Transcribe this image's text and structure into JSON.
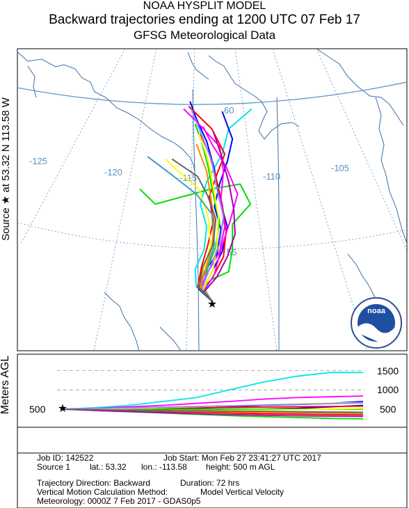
{
  "header": {
    "line1": "NOAA HYSPLIT MODEL",
    "line2": "Backward trajectories ending at 1200 UTC 07 Feb 17",
    "line3": "GFSG Meteorological Data"
  },
  "side_label": "Source ★ at  53.32 N  113.58 W",
  "vertical_axis_label": "Meters AGL",
  "logo": {
    "text": "noaa"
  },
  "info": {
    "job_id": "Job ID: 142522",
    "job_start": "Job Start: Mon Feb 27 23:41:27 UTC 2017",
    "source": "Source 1",
    "lat": "lat.: 53.32",
    "lon": "lon.: -113.58",
    "height": "height: 500 m AGL",
    "direction": "Trajectory Direction: Backward",
    "duration": "Duration: 72 hrs",
    "vmotion": "Vertical Motion Calculation Method:",
    "vmotion_value": "Model Vertical Velocity",
    "meteorology": "Meteorology: 0000Z  7 Feb 2017 - GDAS0p5"
  },
  "colors": {
    "graticule": "#5b8fc2",
    "boundary": "#3a6fa8",
    "ensemble": [
      "#ff0000",
      "#0000ff",
      "#00dd00",
      "#00e5e5",
      "#ff00ff",
      "#ffff00",
      "#7a7aff",
      "#ff8800",
      "#8888ff",
      "#ff44aa",
      "#00aa00",
      "#4499cc",
      "#aa00aa",
      "#666666"
    ]
  },
  "chart_data": {
    "type": "line",
    "title": "Backward trajectories ending at 1200 UTC 07 Feb 17",
    "source": {
      "lat": 53.32,
      "lon": -113.58,
      "height_m_agl": 500
    },
    "map": {
      "lon_labels": [
        "-125",
        "-120",
        "-115",
        "-110",
        "-105"
      ],
      "lat_labels": [
        "60",
        "55"
      ]
    },
    "height_panel": {
      "ylabel": "Meters AGL",
      "ticks": [
        500,
        1000,
        1500
      ],
      "ylim": [
        0,
        1800
      ],
      "duration_hrs": 72
    },
    "series": [
      {
        "color": "#00e5e5",
        "path": [
          [
            -113.58,
            53.32
          ],
          [
            -114.8,
            53.9
          ],
          [
            -114.9,
            54.6
          ],
          [
            -114.2,
            55.4
          ],
          [
            -114.0,
            56.3
          ],
          [
            -114.5,
            57.2
          ],
          [
            -114.0,
            58.1
          ],
          [
            -112.8,
            59.2
          ],
          [
            -112.3,
            60.2
          ],
          [
            -110.5,
            61.0
          ]
        ],
        "height": [
          500,
          540,
          600,
          700,
          800,
          1000,
          1200,
          1350,
          1450,
          1450
        ]
      },
      {
        "color": "#0000ff",
        "path": [
          [
            -113.58,
            53.32
          ],
          [
            -114.6,
            53.8
          ],
          [
            -114.2,
            54.5
          ],
          [
            -113.2,
            55.2
          ],
          [
            -112.9,
            56.2
          ],
          [
            -113.4,
            57.1
          ],
          [
            -113.0,
            58.0
          ],
          [
            -112.4,
            58.9
          ],
          [
            -112.0,
            59.8
          ],
          [
            -112.8,
            60.9
          ]
        ],
        "height": [
          500,
          490,
          480,
          500,
          520,
          560,
          600,
          620,
          650,
          700
        ]
      },
      {
        "color": "#0000ff",
        "path": [
          [
            -113.58,
            53.32
          ],
          [
            -114.4,
            53.7
          ],
          [
            -113.7,
            54.4
          ],
          [
            -112.8,
            55.3
          ],
          [
            -112.4,
            56.3
          ],
          [
            -113.0,
            57.4
          ],
          [
            -113.4,
            58.6
          ],
          [
            -114.0,
            59.7
          ],
          [
            -114.8,
            60.6
          ],
          [
            -115.3,
            61.3
          ]
        ],
        "height": [
          500,
          470,
          450,
          440,
          460,
          480,
          500,
          520,
          560,
          600
        ]
      },
      {
        "color": "#ff0000",
        "path": [
          [
            -113.58,
            53.32
          ],
          [
            -114.7,
            53.9
          ],
          [
            -114.4,
            54.7
          ],
          [
            -113.9,
            55.6
          ],
          [
            -113.5,
            56.5
          ],
          [
            -113.8,
            57.5
          ],
          [
            -113.2,
            58.4
          ],
          [
            -112.6,
            59.2
          ],
          [
            -113.6,
            60.2
          ],
          [
            -115.4,
            61.1
          ]
        ],
        "height": [
          500,
          480,
          460,
          440,
          420,
          400,
          380,
          370,
          360,
          350
        ]
      },
      {
        "color": "#ff0000",
        "path": [
          [
            -113.58,
            53.32
          ],
          [
            -114.3,
            53.7
          ],
          [
            -113.5,
            54.3
          ],
          [
            -112.7,
            55.1
          ],
          [
            -112.5,
            56.1
          ],
          [
            -112.8,
            57.2
          ],
          [
            -113.3,
            58.3
          ],
          [
            -113.8,
            59.2
          ],
          [
            -114.5,
            60.0
          ]
        ],
        "height": [
          500,
          510,
          520,
          530,
          540,
          550,
          560,
          570,
          580
        ]
      },
      {
        "color": "#00dd00",
        "path": [
          [
            -113.58,
            53.32
          ],
          [
            -114.5,
            53.8
          ],
          [
            -113.6,
            54.2
          ],
          [
            -112.3,
            54.5
          ],
          [
            -112.0,
            55.4
          ],
          [
            -112.0,
            56.4
          ],
          [
            -110.6,
            57.2
          ],
          [
            -111.4,
            58.0
          ],
          [
            -113.7,
            57.8
          ],
          [
            -118.0,
            57.2
          ],
          [
            -119.2,
            57.8
          ]
        ],
        "height": [
          500,
          470,
          440,
          410,
          380,
          350,
          320,
          300,
          280,
          260,
          250
        ]
      },
      {
        "color": "#00dd00",
        "path": [
          [
            -113.58,
            53.32
          ],
          [
            -114.3,
            53.9
          ],
          [
            -113.9,
            54.7
          ],
          [
            -113.3,
            55.5
          ],
          [
            -113.0,
            56.5
          ],
          [
            -113.5,
            57.6
          ],
          [
            -113.9,
            58.7
          ],
          [
            -114.4,
            59.7
          ],
          [
            -114.9,
            60.4
          ]
        ],
        "height": [
          500,
          500,
          500,
          500,
          500,
          500,
          500,
          500,
          500
        ]
      },
      {
        "color": "#ff00ff",
        "path": [
          [
            -113.58,
            53.32
          ],
          [
            -114.5,
            53.85
          ],
          [
            -113.9,
            54.5
          ],
          [
            -113.0,
            55.3
          ],
          [
            -112.6,
            56.3
          ],
          [
            -112.9,
            57.4
          ],
          [
            -112.7,
            58.5
          ],
          [
            -113.0,
            59.5
          ],
          [
            -114.8,
            60.5
          ],
          [
            -115.8,
            61.0
          ]
        ],
        "height": [
          500,
          520,
          560,
          600,
          650,
          700,
          760,
          800,
          820,
          840
        ]
      },
      {
        "color": "#ff00ff",
        "path": [
          [
            -113.58,
            53.32
          ],
          [
            -114.2,
            53.75
          ],
          [
            -113.4,
            54.4
          ],
          [
            -112.9,
            55.4
          ],
          [
            -112.2,
            56.5
          ],
          [
            -111.6,
            57.6
          ],
          [
            -112.5,
            58.7
          ],
          [
            -113.6,
            59.6
          ],
          [
            -114.3,
            60.3
          ]
        ],
        "height": [
          500,
          490,
          480,
          460,
          440,
          420,
          400,
          390,
          380
        ]
      },
      {
        "color": "#ffff00",
        "path": [
          [
            -113.58,
            53.32
          ],
          [
            -114.6,
            54.0
          ],
          [
            -114.1,
            54.8
          ],
          [
            -113.7,
            55.6
          ],
          [
            -113.9,
            56.7
          ],
          [
            -114.6,
            57.8
          ],
          [
            -116.4,
            58.6
          ],
          [
            -117.2,
            59.0
          ]
        ],
        "height": [
          500,
          510,
          530,
          560,
          590,
          620,
          650,
          670
        ]
      },
      {
        "color": "#ffff00",
        "path": [
          [
            -113.58,
            53.32
          ],
          [
            -114.3,
            53.8
          ],
          [
            -113.5,
            54.6
          ],
          [
            -113.2,
            55.6
          ],
          [
            -113.1,
            56.7
          ],
          [
            -113.5,
            57.9
          ],
          [
            -113.9,
            59.0
          ],
          [
            -114.6,
            60.0
          ]
        ],
        "height": [
          500,
          480,
          470,
          460,
          470,
          480,
          500,
          520
        ]
      },
      {
        "color": "#4499cc",
        "path": [
          [
            -113.58,
            53.32
          ],
          [
            -114.6,
            53.9
          ],
          [
            -114.0,
            54.6
          ],
          [
            -113.4,
            55.6
          ],
          [
            -113.6,
            56.8
          ],
          [
            -114.8,
            57.6
          ],
          [
            -116.8,
            58.4
          ],
          [
            -118.6,
            59.1
          ]
        ],
        "height": [
          500,
          480,
          460,
          450,
          440,
          430,
          420,
          410
        ]
      },
      {
        "color": "#8888ff",
        "path": [
          [
            -113.58,
            53.32
          ],
          [
            -114.4,
            53.8
          ],
          [
            -113.8,
            54.6
          ],
          [
            -113.0,
            55.6
          ],
          [
            -112.7,
            56.7
          ],
          [
            -113.2,
            57.8
          ],
          [
            -113.6,
            58.9
          ],
          [
            -114.5,
            60.1
          ],
          [
            -115.2,
            61.0
          ]
        ],
        "height": [
          500,
          520,
          540,
          560,
          580,
          600,
          620,
          640,
          660
        ]
      },
      {
        "color": "#ff8800",
        "path": [
          [
            -113.58,
            53.32
          ],
          [
            -114.5,
            53.9
          ],
          [
            -114.1,
            54.6
          ],
          [
            -113.6,
            55.5
          ],
          [
            -113.4,
            56.5
          ],
          [
            -113.7,
            57.5
          ],
          [
            -114.0,
            58.5
          ],
          [
            -114.8,
            59.6
          ]
        ],
        "height": [
          500,
          490,
          470,
          450,
          430,
          410,
          390,
          380
        ]
      },
      {
        "color": "#aa00aa",
        "path": [
          [
            -113.58,
            53.32
          ],
          [
            -114.2,
            53.7
          ],
          [
            -113.2,
            54.3
          ],
          [
            -112.4,
            55.1
          ],
          [
            -111.8,
            56.0
          ],
          [
            -111.9,
            57.0
          ],
          [
            -112.3,
            58.1
          ],
          [
            -112.9,
            59.2
          ],
          [
            -113.5,
            60.1
          ]
        ],
        "height": [
          500,
          460,
          430,
          400,
          370,
          350,
          330,
          320,
          310
        ]
      },
      {
        "color": "#666666",
        "path": [
          [
            -113.58,
            53.32
          ],
          [
            -114.6,
            53.9
          ],
          [
            -114.3,
            54.7
          ],
          [
            -113.5,
            55.6
          ],
          [
            -113.3,
            56.6
          ],
          [
            -113.9,
            57.5
          ],
          [
            -114.7,
            58.3
          ],
          [
            -116.7,
            59.0
          ]
        ],
        "height": [
          500,
          480,
          470,
          460,
          450,
          440,
          430,
          420
        ]
      }
    ]
  }
}
